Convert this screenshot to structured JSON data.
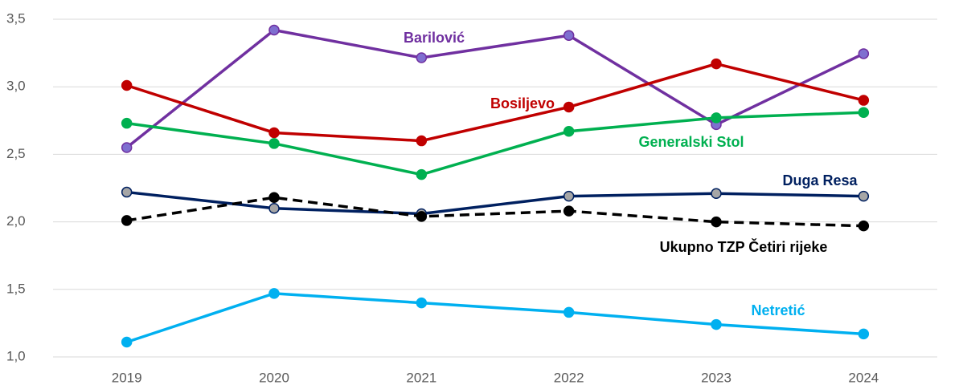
{
  "chart_data": {
    "type": "line",
    "categories": [
      "2019",
      "2020",
      "2021",
      "2022",
      "2023",
      "2024"
    ],
    "ylim": [
      1.0,
      3.5
    ],
    "yticks": [
      {
        "value": 1.0,
        "label": "1,0"
      },
      {
        "value": 1.5,
        "label": "1,5"
      },
      {
        "value": 2.0,
        "label": "2,0"
      },
      {
        "value": 2.5,
        "label": "2,5"
      },
      {
        "value": 3.0,
        "label": "3,0"
      },
      {
        "value": 3.5,
        "label": "3,5"
      }
    ],
    "grid": true,
    "series": [
      {
        "name": "Barilović",
        "color": "#7030a0",
        "marker_color": "#7f6fd0",
        "values": [
          2.55,
          3.42,
          3.215,
          3.38,
          2.72,
          3.245
        ]
      },
      {
        "name": "Bosiljevo",
        "color": "#c00000",
        "marker_color": "#c00000",
        "values": [
          3.01,
          2.66,
          2.6,
          2.85,
          3.17,
          2.9
        ]
      },
      {
        "name": "Generalski Stol",
        "color": "#00b050",
        "marker_color": "#00b050",
        "values": [
          2.73,
          2.58,
          2.35,
          2.67,
          2.77,
          2.81
        ]
      },
      {
        "name": "Duga Resa",
        "color": "#002060",
        "marker_color": "#a6a6a6",
        "values": [
          2.22,
          2.1,
          2.06,
          2.19,
          2.21,
          2.19
        ]
      },
      {
        "name": "Ukupno TZP Četiri rijeke",
        "color": "#000000",
        "marker_color": "#000000",
        "line_style": "dashed",
        "values": [
          2.01,
          2.18,
          2.04,
          2.08,
          2.0,
          1.97
        ]
      },
      {
        "name": "Netretić",
        "color": "#00b0f0",
        "marker_color": "#00b0f0",
        "values": [
          1.11,
          1.47,
          1.4,
          1.33,
          1.24,
          1.17
        ]
      }
    ]
  }
}
